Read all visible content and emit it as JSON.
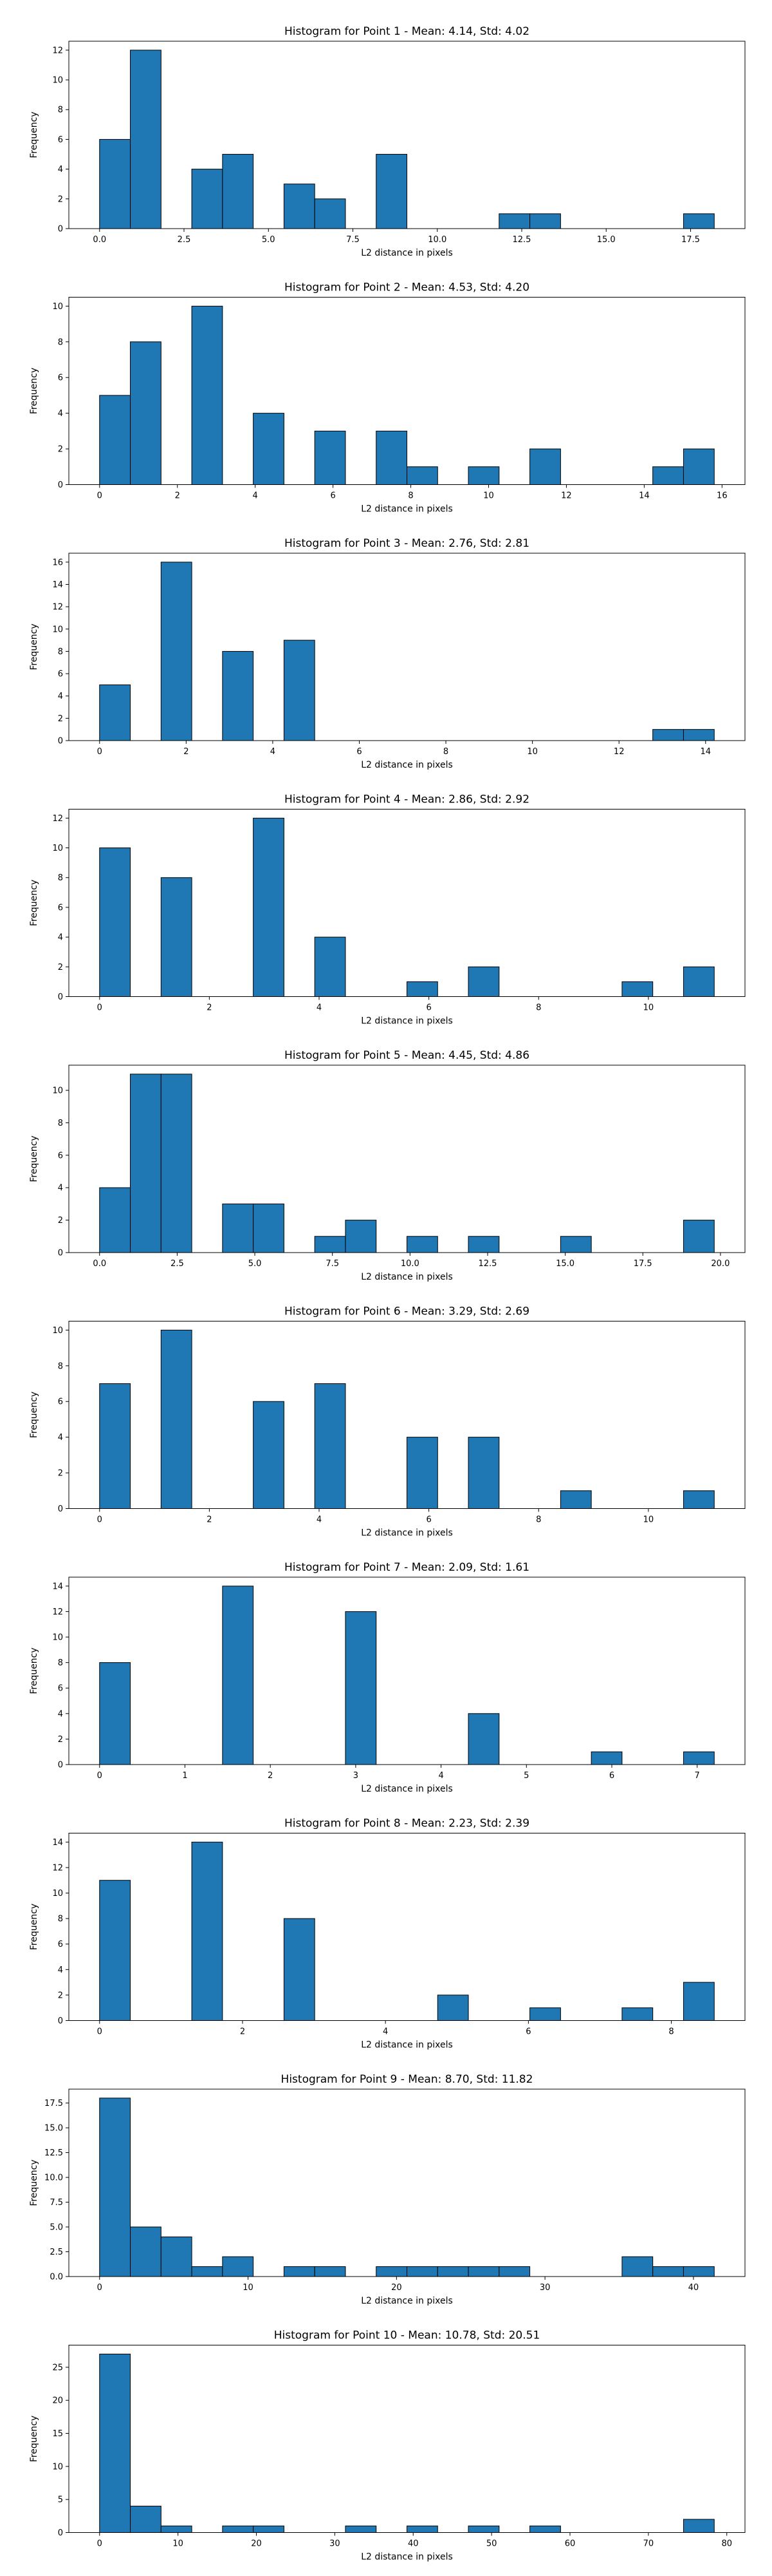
{
  "xlabel_common": "L2 distance in pixels",
  "chart_data": [
    {
      "type": "bar",
      "title": "Histogram for Point 1 - Mean: 4.14, Std: 4.02",
      "xlabel": "L2 distance in pixels",
      "ylabel": "Frequency",
      "bin_start": 0.0,
      "bin_width": 0.91,
      "values": [
        6,
        12,
        0,
        4,
        5,
        0,
        3,
        2,
        0,
        5,
        0,
        0,
        0,
        1,
        1,
        0,
        0,
        0,
        0,
        1
      ],
      "xlim": [
        -0.91,
        19.11
      ],
      "xticks": [
        0.0,
        2.5,
        5.0,
        7.5,
        10.0,
        12.5,
        15.0,
        17.5
      ],
      "xtick_labels": [
        "0.0",
        "2.5",
        "5.0",
        "7.5",
        "10.0",
        "12.5",
        "15.0",
        "17.5"
      ],
      "ylim": [
        0,
        12.6
      ],
      "yticks": [
        0,
        2,
        4,
        6,
        8,
        10,
        12
      ]
    },
    {
      "type": "bar",
      "title": "Histogram for Point 2 - Mean: 4.53, Std: 4.20",
      "xlabel": "L2 distance in pixels",
      "ylabel": "Frequency",
      "bin_start": 0.0,
      "bin_width": 0.79,
      "values": [
        5,
        8,
        0,
        10,
        0,
        4,
        0,
        3,
        0,
        3,
        1,
        0,
        1,
        0,
        2,
        0,
        0,
        0,
        1,
        2
      ],
      "xlim": [
        -0.79,
        16.59
      ],
      "xticks": [
        0,
        2,
        4,
        6,
        8,
        10,
        12,
        14,
        16
      ],
      "xtick_labels": [
        "0",
        "2",
        "4",
        "6",
        "8",
        "10",
        "12",
        "14",
        "16"
      ],
      "ylim": [
        0,
        10.5
      ],
      "yticks": [
        0,
        2,
        4,
        6,
        8,
        10
      ]
    },
    {
      "type": "bar",
      "title": "Histogram for Point 3 - Mean: 2.76, Std: 2.81",
      "xlabel": "L2 distance in pixels",
      "ylabel": "Frequency",
      "bin_start": 0.0,
      "bin_width": 0.71,
      "values": [
        5,
        0,
        16,
        0,
        8,
        0,
        9,
        0,
        0,
        0,
        0,
        0,
        0,
        0,
        0,
        0,
        0,
        0,
        1,
        1
      ],
      "xlim": [
        -0.71,
        14.91
      ],
      "xticks": [
        0,
        2,
        4,
        6,
        8,
        10,
        12,
        14
      ],
      "xtick_labels": [
        "0",
        "2",
        "4",
        "6",
        "8",
        "10",
        "12",
        "14"
      ],
      "ylim": [
        0,
        16.8
      ],
      "yticks": [
        0,
        2,
        4,
        6,
        8,
        10,
        12,
        14,
        16
      ]
    },
    {
      "type": "bar",
      "title": "Histogram for Point 4 - Mean: 2.86, Std: 2.92",
      "xlabel": "L2 distance in pixels",
      "ylabel": "Frequency",
      "bin_start": 0.0,
      "bin_width": 0.56,
      "values": [
        10,
        0,
        8,
        0,
        0,
        12,
        0,
        4,
        0,
        0,
        1,
        0,
        2,
        0,
        0,
        0,
        0,
        1,
        0,
        2
      ],
      "xlim": [
        -0.56,
        11.76
      ],
      "xticks": [
        0,
        2,
        4,
        6,
        8,
        10
      ],
      "xtick_labels": [
        "0",
        "2",
        "4",
        "6",
        "8",
        "10"
      ],
      "ylim": [
        0,
        12.6
      ],
      "yticks": [
        0,
        2,
        4,
        6,
        8,
        10,
        12
      ]
    },
    {
      "type": "bar",
      "title": "Histogram for Point 5 - Mean: 4.45, Std: 4.86",
      "xlabel": "L2 distance in pixels",
      "ylabel": "Frequency",
      "bin_start": 0.0,
      "bin_width": 0.99,
      "values": [
        4,
        11,
        11,
        0,
        3,
        3,
        0,
        1,
        2,
        0,
        1,
        0,
        1,
        0,
        0,
        1,
        0,
        0,
        0,
        2
      ],
      "xlim": [
        -0.99,
        20.79
      ],
      "xticks": [
        0.0,
        2.5,
        5.0,
        7.5,
        10.0,
        12.5,
        15.0,
        17.5,
        20.0
      ],
      "xtick_labels": [
        "0.0",
        "2.5",
        "5.0",
        "7.5",
        "10.0",
        "12.5",
        "15.0",
        "17.5",
        "20.0"
      ],
      "ylim": [
        0,
        11.55
      ],
      "yticks": [
        0,
        2,
        4,
        6,
        8,
        10
      ]
    },
    {
      "type": "bar",
      "title": "Histogram for Point 6 - Mean: 3.29, Std: 2.69",
      "xlabel": "L2 distance in pixels",
      "ylabel": "Frequency",
      "bin_start": 0.0,
      "bin_width": 0.56,
      "values": [
        7,
        0,
        10,
        0,
        0,
        6,
        0,
        7,
        0,
        0,
        4,
        0,
        4,
        0,
        0,
        1,
        0,
        0,
        0,
        1
      ],
      "xlim": [
        -0.56,
        11.76
      ],
      "xticks": [
        0,
        2,
        4,
        6,
        8,
        10
      ],
      "xtick_labels": [
        "0",
        "2",
        "4",
        "6",
        "8",
        "10"
      ],
      "ylim": [
        0,
        10.5
      ],
      "yticks": [
        0,
        2,
        4,
        6,
        8,
        10
      ]
    },
    {
      "type": "bar",
      "title": "Histogram for Point 7 - Mean: 2.09, Std: 1.61",
      "xlabel": "L2 distance in pixels",
      "ylabel": "Frequency",
      "bin_start": 0.0,
      "bin_width": 0.36,
      "values": [
        8,
        0,
        0,
        0,
        14,
        0,
        0,
        0,
        12,
        0,
        0,
        0,
        4,
        0,
        0,
        0,
        1,
        0,
        0,
        1
      ],
      "xlim": [
        -0.36,
        7.56
      ],
      "xticks": [
        0,
        1,
        2,
        3,
        4,
        5,
        6,
        7
      ],
      "xtick_labels": [
        "0",
        "1",
        "2",
        "3",
        "4",
        "5",
        "6",
        "7"
      ],
      "ylim": [
        0,
        14.7
      ],
      "yticks": [
        0,
        2,
        4,
        6,
        8,
        10,
        12,
        14
      ]
    },
    {
      "type": "bar",
      "title": "Histogram for Point 8 - Mean: 2.23, Std: 2.39",
      "xlabel": "L2 distance in pixels",
      "ylabel": "Frequency",
      "bin_start": 0.0,
      "bin_width": 0.43,
      "values": [
        11,
        0,
        0,
        14,
        0,
        0,
        8,
        0,
        0,
        0,
        0,
        2,
        0,
        0,
        1,
        0,
        0,
        1,
        0,
        3
      ],
      "xlim": [
        -0.43,
        9.03
      ],
      "xticks": [
        0,
        2,
        4,
        6,
        8
      ],
      "xtick_labels": [
        "0",
        "2",
        "4",
        "6",
        "8"
      ],
      "ylim": [
        0,
        14.7
      ],
      "yticks": [
        0,
        2,
        4,
        6,
        8,
        10,
        12,
        14
      ]
    },
    {
      "type": "bar",
      "title": "Histogram for Point 9 - Mean: 8.70, Std: 11.82",
      "xlabel": "L2 distance in pixels",
      "ylabel": "Frequency",
      "bin_start": 0.0,
      "bin_width": 2.07,
      "values": [
        18,
        5,
        4,
        1,
        2,
        0,
        1,
        1,
        0,
        1,
        1,
        1,
        1,
        1,
        0,
        0,
        0,
        2,
        1,
        1
      ],
      "xlim": [
        -2.07,
        43.47
      ],
      "xticks": [
        0,
        10,
        20,
        30,
        40
      ],
      "xtick_labels": [
        "0",
        "10",
        "20",
        "30",
        "40"
      ],
      "ylim": [
        0,
        18.9
      ],
      "yticks": [
        0.0,
        2.5,
        5.0,
        7.5,
        10.0,
        12.5,
        15.0,
        17.5
      ],
      "ytick_labels": [
        "0.0",
        "2.5",
        "5.0",
        "7.5",
        "10.0",
        "12.5",
        "15.0",
        "17.5"
      ]
    },
    {
      "type": "bar",
      "title": "Histogram for Point 10 - Mean: 10.78, Std: 20.51",
      "xlabel": "L2 distance in pixels",
      "ylabel": "Frequency",
      "bin_start": 0.0,
      "bin_width": 3.92,
      "values": [
        27,
        4,
        1,
        0,
        1,
        1,
        0,
        0,
        1,
        0,
        1,
        0,
        1,
        0,
        1,
        0,
        0,
        0,
        0,
        2
      ],
      "xlim": [
        -3.92,
        82.32
      ],
      "xticks": [
        0,
        10,
        20,
        30,
        40,
        50,
        60,
        70,
        80
      ],
      "xtick_labels": [
        "0",
        "10",
        "20",
        "30",
        "40",
        "50",
        "60",
        "70",
        "80"
      ],
      "ylim": [
        0,
        28.35
      ],
      "yticks": [
        0,
        5,
        10,
        15,
        20,
        25
      ]
    }
  ]
}
